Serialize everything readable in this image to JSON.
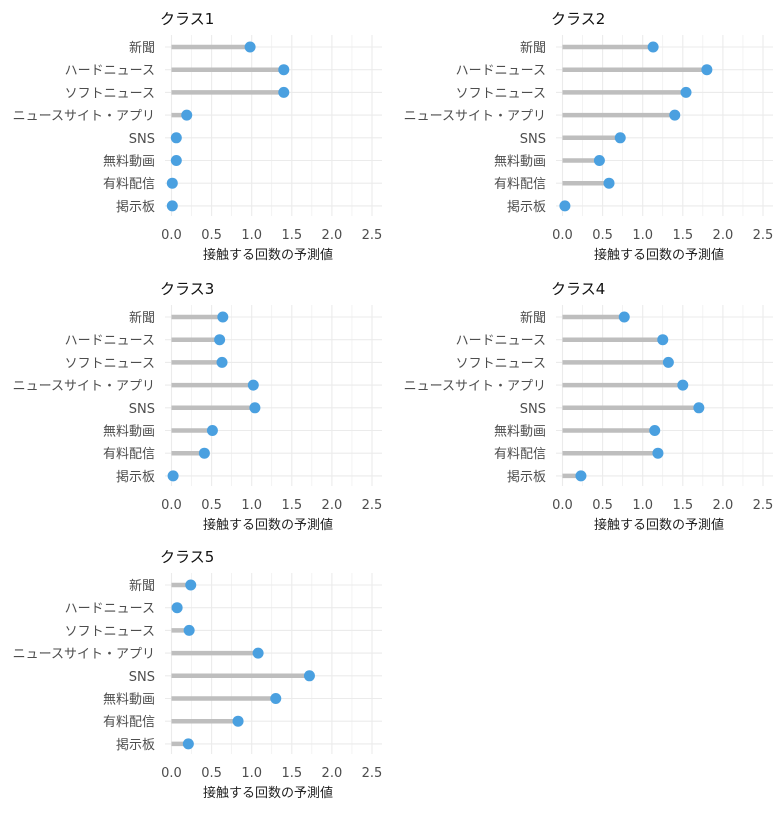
{
  "chart_data": [
    {
      "type": "lollipop",
      "title": "クラス1",
      "xlabel": "接触する回数の予測値",
      "xlim": [
        0,
        2.6
      ],
      "xticks": [
        "0.0",
        "0.5",
        "1.0",
        "1.5",
        "2.0",
        "2.5"
      ],
      "grid": true,
      "categories": [
        "新聞",
        "ハードニュース",
        "ソフトニュース",
        "ニュースサイト・アプリ",
        "SNS",
        "無料動画",
        "有料配信",
        "掲示板"
      ],
      "values": [
        0.98,
        1.4,
        1.4,
        0.19,
        0.06,
        0.06,
        0.01,
        0.01
      ]
    },
    {
      "type": "lollipop",
      "title": "クラス2",
      "xlabel": "接触する回数の予測値",
      "xlim": [
        0,
        2.6
      ],
      "xticks": [
        "0.0",
        "0.5",
        "1.0",
        "1.5",
        "2.0",
        "2.5"
      ],
      "grid": true,
      "categories": [
        "新聞",
        "ハードニュース",
        "ソフトニュース",
        "ニュースサイト・アプリ",
        "SNS",
        "無料動画",
        "有料配信",
        "掲示板"
      ],
      "values": [
        1.13,
        1.8,
        1.54,
        1.4,
        0.72,
        0.46,
        0.58,
        0.03
      ]
    },
    {
      "type": "lollipop",
      "title": "クラス3",
      "xlabel": "接触する回数の予測値",
      "xlim": [
        0,
        2.6
      ],
      "xticks": [
        "0.0",
        "0.5",
        "1.0",
        "1.5",
        "2.0",
        "2.5"
      ],
      "grid": true,
      "categories": [
        "新聞",
        "ハードニュース",
        "ソフトニュース",
        "ニュースサイト・アプリ",
        "SNS",
        "無料動画",
        "有料配信",
        "掲示板"
      ],
      "values": [
        0.64,
        0.6,
        0.63,
        1.02,
        1.04,
        0.51,
        0.41,
        0.02
      ]
    },
    {
      "type": "lollipop",
      "title": "クラス4",
      "xlabel": "接触する回数の予測値",
      "xlim": [
        0,
        2.6
      ],
      "xticks": [
        "0.0",
        "0.5",
        "1.0",
        "1.5",
        "2.0",
        "2.5"
      ],
      "grid": true,
      "categories": [
        "新聞",
        "ハードニュース",
        "ソフトニュース",
        "ニュースサイト・アプリ",
        "SNS",
        "無料動画",
        "有料配信",
        "掲示板"
      ],
      "values": [
        0.77,
        1.25,
        1.32,
        1.5,
        1.7,
        1.15,
        1.19,
        0.23
      ]
    },
    {
      "type": "lollipop",
      "title": "クラス5",
      "xlabel": "接触する回数の予測値",
      "xlim": [
        0,
        2.6
      ],
      "xticks": [
        "0.0",
        "0.5",
        "1.0",
        "1.5",
        "2.0",
        "2.5"
      ],
      "grid": true,
      "categories": [
        "新聞",
        "ハードニュース",
        "ソフトニュース",
        "ニュースサイト・アプリ",
        "SNS",
        "無料動画",
        "有料配信",
        "掲示板"
      ],
      "values": [
        0.24,
        0.07,
        0.22,
        1.08,
        1.72,
        1.3,
        0.83,
        0.21
      ]
    }
  ],
  "colors": {
    "point": "#4aa0e0",
    "stem": "#bebebe",
    "grid": "#ebebeb"
  }
}
